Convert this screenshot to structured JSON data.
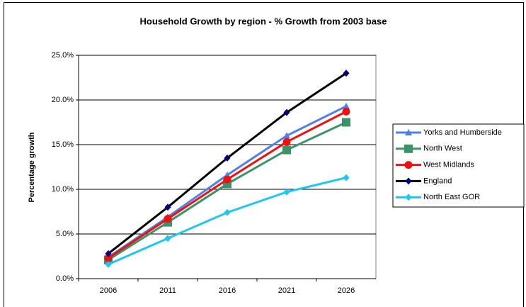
{
  "chart_data": {
    "type": "line",
    "title": "Household Growth by region - % Growth from 2003 base",
    "y_label": "Percentage growth",
    "categories": [
      "2006",
      "2011",
      "2016",
      "2021",
      "2026"
    ],
    "series": [
      {
        "name": "Yorks and Humberside",
        "color": "#4f7fe8",
        "marker": "triangle",
        "values": [
          2.4,
          6.9,
          11.6,
          16.0,
          19.3
        ]
      },
      {
        "name": "North West",
        "color": "#3b9468",
        "marker": "square",
        "values": [
          2.1,
          6.3,
          10.6,
          14.4,
          17.5
        ]
      },
      {
        "name": "West Midlands",
        "color": "#ee1111",
        "marker": "circle",
        "values": [
          2.3,
          6.7,
          11.1,
          15.3,
          18.7
        ]
      },
      {
        "name": "England",
        "color": "#000000",
        "marker": "diamond",
        "marker_color": "#000080",
        "values": [
          2.8,
          8.0,
          13.5,
          18.6,
          23.0
        ]
      },
      {
        "name": "North East GOR",
        "color": "#1ec6f0",
        "marker": "diamond",
        "values": [
          1.6,
          4.5,
          7.4,
          9.7,
          11.3
        ]
      }
    ],
    "ylim": [
      0,
      25
    ],
    "yticks": [
      {
        "value": 0,
        "label": "0.0%"
      },
      {
        "value": 5,
        "label": "5.0%"
      },
      {
        "value": 10,
        "label": "10.0%"
      },
      {
        "value": 15,
        "label": "15.0%"
      },
      {
        "value": 20,
        "label": "20.0%"
      },
      {
        "value": 25,
        "label": "25.0%"
      }
    ],
    "grid": true,
    "legend": "right"
  }
}
